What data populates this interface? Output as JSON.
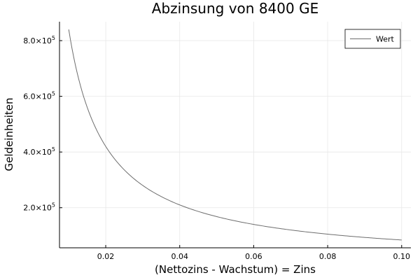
{
  "chart_data": {
    "type": "line",
    "title": "Abzinsung von 8400 GE",
    "xlabel": "(Nettozins - Wachstum) = Zins",
    "ylabel": "Geldeinheiten",
    "xlim": [
      0.0075,
      0.1025
    ],
    "ylim": [
      56000,
      868000
    ],
    "x_ticks": [
      0.02,
      0.04,
      0.06,
      0.08,
      0.1
    ],
    "x_tick_labels": [
      "0.02",
      "0.04",
      "0.06",
      "0.08",
      "0.10"
    ],
    "y_ticks": [
      {
        "value": 200000,
        "mantissa": "2.0×10",
        "exp": "5"
      },
      {
        "value": 400000,
        "mantissa": "4.0×10",
        "exp": "5"
      },
      {
        "value": 600000,
        "mantissa": "6.0×10",
        "exp": "5"
      },
      {
        "value": 800000,
        "mantissa": "8.0×10",
        "exp": "5"
      }
    ],
    "grid": true,
    "legend_position": "top-right",
    "series": [
      {
        "name": "Wert",
        "color": "#6e6e6e",
        "x": [
          0.01,
          0.011,
          0.012,
          0.013,
          0.014,
          0.015,
          0.016,
          0.017,
          0.018,
          0.019,
          0.02,
          0.022,
          0.024,
          0.026,
          0.028,
          0.03,
          0.032,
          0.034,
          0.036,
          0.038,
          0.04,
          0.044,
          0.048,
          0.052,
          0.056,
          0.06,
          0.065,
          0.07,
          0.075,
          0.08,
          0.085,
          0.09,
          0.095,
          0.1
        ],
        "y": [
          840000,
          763636,
          700000,
          646154,
          600000,
          560000,
          525000,
          494118,
          466667,
          442105,
          420000,
          381818,
          350000,
          323077,
          300000,
          280000,
          262500,
          247059,
          233333,
          221053,
          210000,
          190909,
          175000,
          161538,
          150000,
          140000,
          129231,
          120000,
          112000,
          105000,
          98824,
          93333,
          88421,
          84000
        ]
      }
    ]
  }
}
